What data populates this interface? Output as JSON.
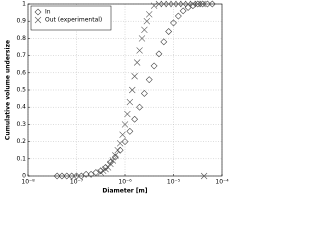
{
  "chart_data": {
    "type": "scatter",
    "xlabel": "Diameter [m]",
    "ylabel": "Cumulative volume undersize",
    "xscale": "log",
    "xlim": [
      1e-08,
      0.0001
    ],
    "xticks": [
      {
        "value": 1e-08,
        "label": "10⁻⁸"
      },
      {
        "value": 1e-07,
        "label": "10⁻⁷"
      },
      {
        "value": 1e-06,
        "label": "10⁻⁶"
      },
      {
        "value": 1e-05,
        "label": "10⁻⁵"
      },
      {
        "value": 0.0001,
        "label": "10⁻⁴"
      }
    ],
    "ylim": [
      0,
      1
    ],
    "yticks": [
      0,
      0.1,
      0.2,
      0.3,
      0.4,
      0.5,
      0.6,
      0.7,
      0.8,
      0.9,
      1
    ],
    "grid": true,
    "legend": "upper left",
    "series": [
      {
        "name": "In",
        "marker": "diamond",
        "color": "#444444",
        "x": [
          3.98e-08,
          5.01e-08,
          6.31e-08,
          7.94e-08,
          1e-07,
          1.26e-07,
          1.58e-07,
          2e-07,
          2.51e-07,
          3.16e-07,
          3.98e-07,
          5.01e-07,
          6.31e-07,
          7.94e-07,
          1e-06,
          1.26e-06,
          1.58e-06,
          2e-06,
          2.51e-06,
          3.16e-06,
          3.98e-06,
          5.01e-06,
          6.31e-06,
          7.94e-06,
          1e-05,
          1.26e-05,
          1.58e-05,
          2e-05,
          2.51e-05,
          3.16e-05,
          3.98e-05,
          5.01e-05,
          6.31e-05
        ],
        "values": [
          0,
          0,
          0,
          0,
          0,
          0,
          0.01,
          0.01,
          0.02,
          0.03,
          0.05,
          0.08,
          0.11,
          0.15,
          0.2,
          0.26,
          0.33,
          0.4,
          0.48,
          0.56,
          0.64,
          0.71,
          0.78,
          0.84,
          0.89,
          0.93,
          0.96,
          0.98,
          0.99,
          1,
          1,
          1,
          1
        ]
      },
      {
        "name": "Out (experimental)",
        "marker": "x",
        "color": "#555555",
        "x": [
          3.16e-07,
          3.55e-07,
          3.98e-07,
          4.47e-07,
          5.01e-07,
          5.62e-07,
          6.31e-07,
          7.08e-07,
          7.94e-07,
          8.91e-07,
          1e-06,
          1.12e-06,
          1.26e-06,
          1.41e-06,
          1.58e-06,
          1.78e-06,
          2e-06,
          2.24e-06,
          2.51e-06,
          2.82e-06,
          3.16e-06,
          3.98e-06,
          5.01e-06,
          6.31e-06,
          7.94e-06,
          1e-05,
          1.26e-05,
          1.58e-05,
          2e-05,
          2.51e-05,
          3.16e-05,
          3.98e-05,
          4.27e-05
        ],
        "values": [
          0.02,
          0.03,
          0.04,
          0.05,
          0.07,
          0.09,
          0.12,
          0.15,
          0.19,
          0.24,
          0.3,
          0.36,
          0.43,
          0.5,
          0.58,
          0.66,
          0.73,
          0.8,
          0.85,
          0.9,
          0.94,
          0.99,
          1,
          1,
          1,
          1,
          1,
          1,
          1,
          1,
          1,
          1,
          0
        ]
      }
    ]
  }
}
